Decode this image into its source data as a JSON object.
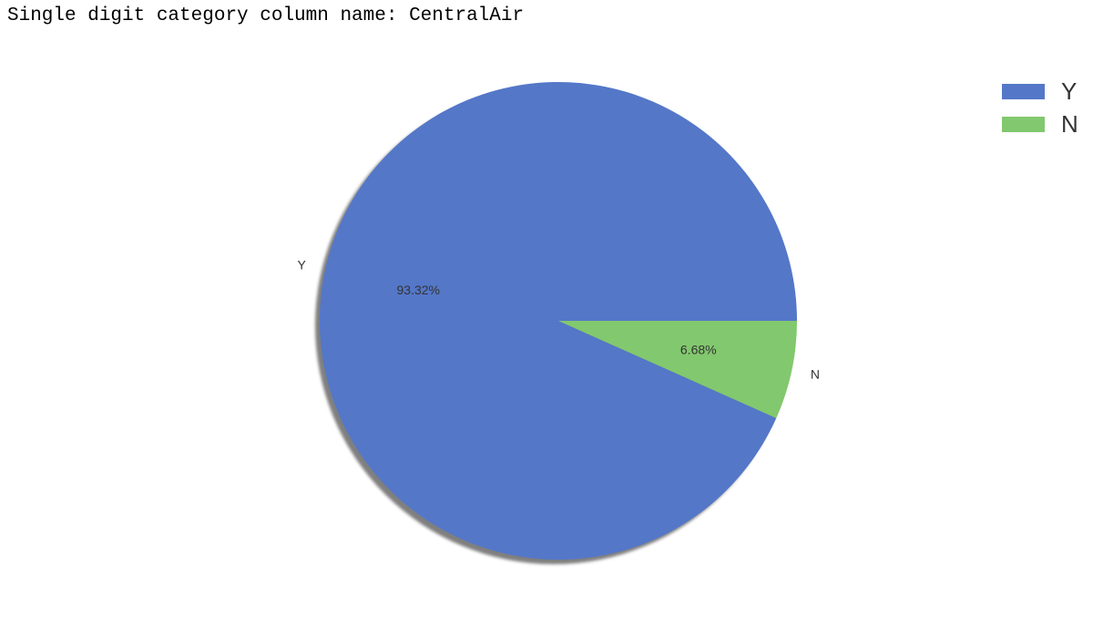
{
  "heading": "Single digit category column name: CentralAir",
  "chart_data": {
    "type": "pie",
    "title": "",
    "categories": [
      "Y",
      "N"
    ],
    "values": [
      93.32,
      6.68
    ],
    "percent_labels": [
      "93.32%",
      "6.68%"
    ],
    "colors": [
      "#5477c8",
      "#82c86e"
    ],
    "shadow": true,
    "start_angle": 0,
    "direction": "counterclockwise",
    "legend": {
      "position": "top-right",
      "entries": [
        "Y",
        "N"
      ]
    }
  }
}
